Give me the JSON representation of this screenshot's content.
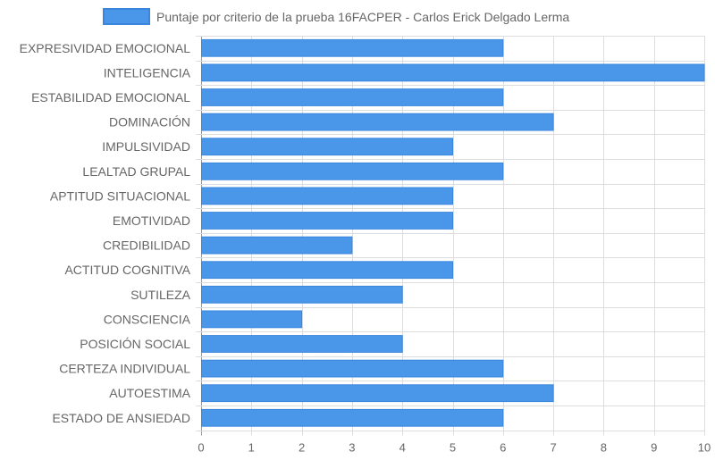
{
  "chart_data": {
    "type": "bar",
    "orientation": "horizontal",
    "legend_position": "top",
    "grid": true,
    "xlim": [
      0,
      10
    ],
    "x_ticks": [
      0,
      1,
      2,
      3,
      4,
      5,
      6,
      7,
      8,
      9,
      10
    ],
    "categories": [
      "EXPRESIVIDAD EMOCIONAL",
      "INTELIGENCIA",
      "ESTABILIDAD EMOCIONAL",
      "DOMINACIÓN",
      "IMPULSIVIDAD",
      "LEALTAD GRUPAL",
      "APTITUD SITUACIONAL",
      "EMOTIVIDAD",
      "CREDIBILIDAD",
      "ACTITUD COGNITIVA",
      "SUTILEZA",
      "CONSCIENCIA",
      "POSICIÓN SOCIAL",
      "CERTEZA INDIVIDUAL",
      "AUTOESTIMA",
      "ESTADO DE ANSIEDAD"
    ],
    "series": [
      {
        "name": "Puntaje por criterio de la prueba 16FACPER - Carlos Erick Delgado Lerma",
        "color": "#4a97ea",
        "border_color": "#3a86de",
        "values": [
          6,
          10,
          6,
          7,
          5,
          6,
          5,
          5,
          3,
          5,
          4,
          2,
          4,
          6,
          7,
          6
        ]
      }
    ]
  }
}
